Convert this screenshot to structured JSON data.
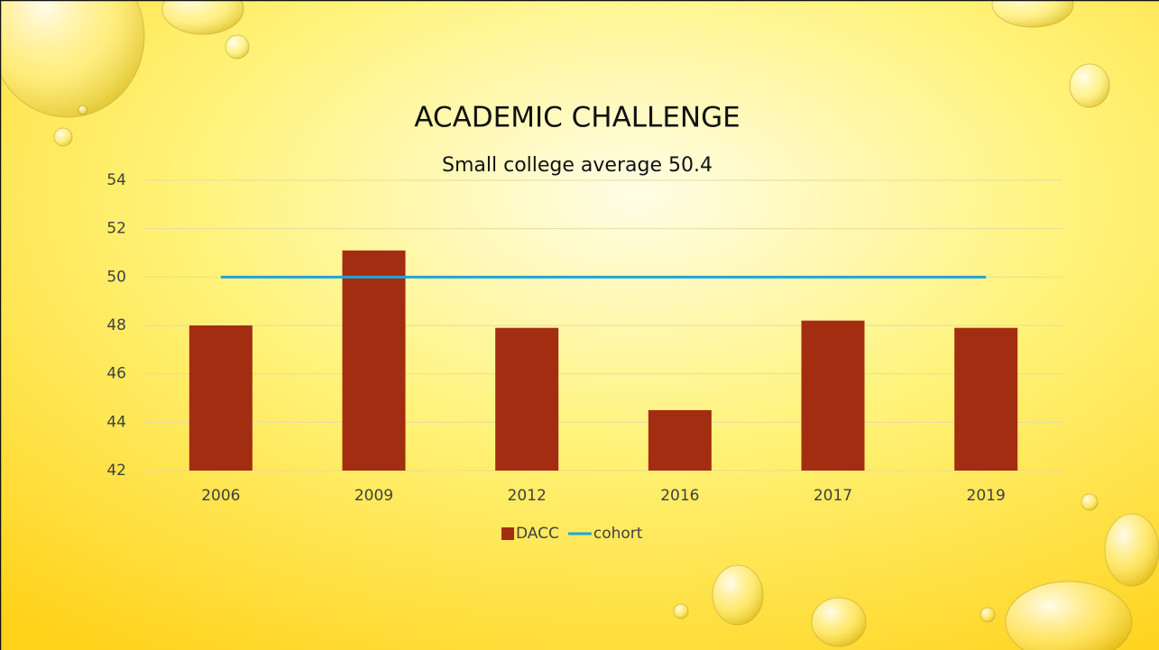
{
  "chart_data": {
    "type": "bar",
    "title": "ACADEMIC CHALLENGE",
    "subtitle": "Small college average 50.4",
    "categories": [
      "2006",
      "2009",
      "2012",
      "2016",
      "2017",
      "2019"
    ],
    "series": [
      {
        "name": "DACC",
        "type": "bar",
        "color": "#a32d11",
        "values": [
          48.0,
          51.1,
          47.9,
          44.5,
          48.2,
          47.9
        ]
      },
      {
        "name": "cohort",
        "type": "line",
        "color": "#1fa5d9",
        "values": [
          50,
          50,
          50,
          50,
          50,
          50
        ]
      }
    ],
    "ylim": [
      42,
      54
    ],
    "yticks": [
      42,
      44,
      46,
      48,
      50,
      52,
      54
    ],
    "grid": true,
    "legend": "bottom"
  }
}
